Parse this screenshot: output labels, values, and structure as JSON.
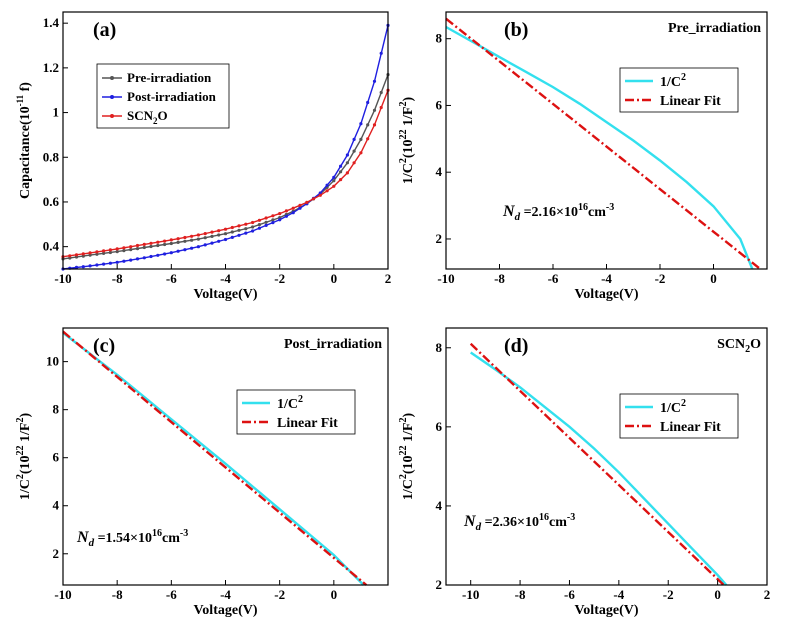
{
  "chart_data": [
    {
      "panel_label": "(a)",
      "type": "line",
      "title": "",
      "xlabel": "Voltage(V)",
      "ylabel": "Capacitance(10-11 f)",
      "ylabel_parts": [
        "Capacitance(10",
        "-11",
        " f)"
      ],
      "xlim": [
        -10,
        2
      ],
      "ylim": [
        0.3,
        1.45
      ],
      "xticks": [
        -10,
        -8,
        -6,
        -4,
        -2,
        0,
        2
      ],
      "yticks": [
        0.4,
        0.6,
        0.8,
        1.0,
        1.2,
        1.4
      ],
      "x": [
        -10,
        -9,
        -8,
        -7,
        -6,
        -5,
        -4,
        -3,
        -2,
        -1.5,
        -1,
        -0.5,
        0,
        0.5,
        1,
        1.5,
        2
      ],
      "series": [
        {
          "name": "Pre-irradiation",
          "color": "#555555",
          "values": [
            0.345,
            0.362,
            0.378,
            0.396,
            0.414,
            0.434,
            0.458,
            0.488,
            0.53,
            0.558,
            0.592,
            0.635,
            0.695,
            0.775,
            0.88,
            1.01,
            1.17
          ]
        },
        {
          "name": "Post-irradiation",
          "color": "#1f1fe0",
          "values": [
            0.3,
            0.314,
            0.33,
            0.35,
            0.373,
            0.4,
            0.432,
            0.47,
            0.52,
            0.552,
            0.592,
            0.64,
            0.71,
            0.81,
            0.95,
            1.14,
            1.39
          ]
        },
        {
          "name": "SCN2O",
          "color": "#e02020",
          "values": [
            0.355,
            0.372,
            0.39,
            0.41,
            0.43,
            0.452,
            0.478,
            0.508,
            0.548,
            0.572,
            0.598,
            0.63,
            0.67,
            0.73,
            0.82,
            0.945,
            1.1
          ]
        }
      ],
      "legend": {
        "placement": "upper-left",
        "labels": [
          "Pre-irradiation",
          "Post-irradiation",
          "SCN2O"
        ]
      }
    },
    {
      "panel_label": "(b)",
      "type": "line",
      "title": "Pre_irradiation",
      "xlabel": "Voltage(V)",
      "ylabel": "1/C2(1022 1/F2)",
      "xlim": [
        -10,
        2
      ],
      "ylim": [
        1.1,
        8.8
      ],
      "xticks": [
        -10,
        -8,
        -6,
        -4,
        -2,
        0
      ],
      "yticks": [
        2,
        4,
        6,
        8
      ],
      "series": [
        {
          "name": "1/C2",
          "color": "#33e0ee",
          "x": [
            -10,
            -9,
            -8,
            -7,
            -6,
            -5,
            -4,
            -3,
            -2,
            -1,
            0,
            1,
            1.45
          ],
          "values": [
            8.35,
            7.9,
            7.45,
            7.0,
            6.55,
            6.05,
            5.5,
            4.95,
            4.35,
            3.7,
            2.98,
            2.0,
            1.1
          ]
        },
        {
          "name": "Linear Fit",
          "color": "#dd1111",
          "x": [
            -10,
            1.75
          ],
          "values": [
            8.6,
            1.1
          ]
        }
      ],
      "legend": {
        "placement": "right",
        "labels": [
          "1/C2",
          "Linear Fit"
        ]
      },
      "annotation": "Nd =2.16×1016cm-3"
    },
    {
      "panel_label": "(c)",
      "type": "line",
      "title": "Post_irradiation",
      "xlabel": "Voltage(V)",
      "ylabel": "1/C2(1022 1/F2)",
      "xlim": [
        -10,
        2
      ],
      "ylim": [
        0.7,
        11.4
      ],
      "xticks": [
        -10,
        -8,
        -6,
        -4,
        -2,
        0
      ],
      "yticks": [
        2,
        4,
        6,
        8,
        10
      ],
      "series": [
        {
          "name": "1/C2",
          "color": "#33e0ee",
          "x": [
            -10,
            -8,
            -6,
            -4,
            -2,
            0,
            1.1
          ],
          "values": [
            11.2,
            9.45,
            7.6,
            5.75,
            3.85,
            1.95,
            0.7
          ]
        },
        {
          "name": "Linear Fit",
          "color": "#dd1111",
          "x": [
            -10,
            1.2
          ],
          "values": [
            11.25,
            0.7
          ]
        }
      ],
      "legend": {
        "placement": "right",
        "labels": [
          "1/C2",
          "Linear Fit"
        ]
      },
      "annotation": "Nd =1.54×1016cm-3"
    },
    {
      "panel_label": "(d)",
      "type": "line",
      "title": "SCN2O",
      "xlabel": "Voltage(V)",
      "ylabel": "1/C2(1022 1/F2)",
      "xlim": [
        -11,
        2
      ],
      "ylim": [
        2,
        8.5
      ],
      "xticks": [
        -10,
        -8,
        -6,
        -4,
        -2,
        0,
        2
      ],
      "yticks": [
        2,
        4,
        6,
        8
      ],
      "series": [
        {
          "name": "1/C2",
          "color": "#33e0ee",
          "x": [
            -10,
            -9,
            -8,
            -7,
            -6,
            -5,
            -4,
            -3,
            -2,
            -1,
            0,
            0.35
          ],
          "values": [
            7.88,
            7.45,
            7.0,
            6.5,
            6.0,
            5.45,
            4.85,
            4.2,
            3.55,
            2.9,
            2.25,
            2.0
          ]
        },
        {
          "name": "Linear Fit",
          "color": "#dd1111",
          "x": [
            -10,
            0.25
          ],
          "values": [
            8.1,
            2.0
          ]
        }
      ],
      "legend": {
        "placement": "right",
        "labels": [
          "1/C2",
          "Linear Fit"
        ]
      },
      "annotation": "Nd =2.36×1016cm-3"
    }
  ]
}
